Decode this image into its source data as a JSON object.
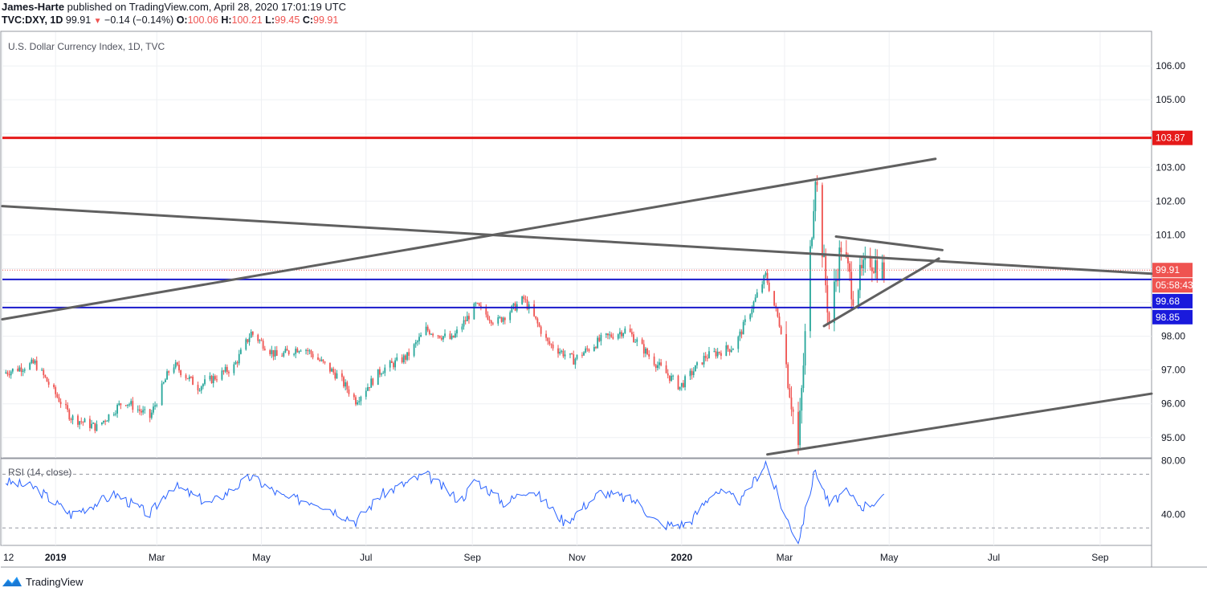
{
  "header": {
    "author": "James-Harte",
    "published_text": "published on TradingView.com, April 28, 2020 17:01:19 UTC",
    "symbol_label": "TVC:DXY, 1D",
    "last": "99.91",
    "arrow": "▼",
    "change": "−0.14 (−0.14%)",
    "o_label": "O:",
    "o_value": "100.06",
    "h_label": "H:",
    "h_value": "100.21",
    "l_label": "L:",
    "l_value": "99.45",
    "c_label": "C:",
    "c_value": "99.91"
  },
  "footer": {
    "brand": "TradingView"
  },
  "colors": {
    "up": "#26a69a",
    "down": "#ef5350",
    "resistance": "#e51a1a",
    "support": "#1a1acc",
    "trendline": "#606060",
    "rsi": "#2962ff",
    "price_label": "#ef5350",
    "support_label": "#1a1adc"
  },
  "chart_data": [
    {
      "type": "candlestick",
      "title": "U.S. Dollar Currency Index, 1D, TVC",
      "x_tick_labels": [
        "12",
        "2019",
        "Mar",
        "May",
        "Jul",
        "Sep",
        "Nov",
        "2020",
        "Mar",
        "May",
        "Jul",
        "Sep"
      ],
      "y_ticks": [
        95,
        96,
        97,
        98,
        99,
        100,
        101,
        102,
        103,
        104,
        105,
        106
      ],
      "y_tick_labels": [
        "95.00",
        "96.00",
        "97.00",
        "98.00",
        "",
        "",
        "101.00",
        "102.00",
        "103.00",
        "",
        "105.00",
        "106.00"
      ],
      "ylim": [
        94.4,
        107.0
      ],
      "price_path": [
        [
          "2018-12-01",
          96.9
        ],
        [
          "2018-12-20",
          97.2
        ],
        [
          "2019-01-10",
          95.6
        ],
        [
          "2019-01-25",
          95.3
        ],
        [
          "2019-02-10",
          96.1
        ],
        [
          "2019-02-25",
          95.6
        ],
        [
          "2019-03-10",
          97.2
        ],
        [
          "2019-03-25",
          96.5
        ],
        [
          "2019-04-15",
          97.1
        ],
        [
          "2019-04-25",
          98.1
        ],
        [
          "2019-05-10",
          97.4
        ],
        [
          "2019-05-25",
          97.7
        ],
        [
          "2019-06-15",
          96.8
        ],
        [
          "2019-06-25",
          96.1
        ],
        [
          "2019-07-10",
          97.0
        ],
        [
          "2019-07-25",
          97.4
        ],
        [
          "2019-08-05",
          98.2
        ],
        [
          "2019-08-20",
          97.9
        ],
        [
          "2019-09-03",
          98.9
        ],
        [
          "2019-09-15",
          98.4
        ],
        [
          "2019-10-01",
          99.1
        ],
        [
          "2019-10-15",
          97.8
        ],
        [
          "2019-10-30",
          97.3
        ],
        [
          "2019-11-15",
          97.9
        ],
        [
          "2019-11-30",
          98.2
        ],
        [
          "2019-12-15",
          97.3
        ],
        [
          "2019-12-31",
          96.5
        ],
        [
          "2020-01-15",
          97.4
        ],
        [
          "2020-02-01",
          97.7
        ],
        [
          "2020-02-19",
          99.8
        ],
        [
          "2020-02-28",
          98.2
        ],
        [
          "2020-03-09",
          94.7
        ],
        [
          "2020-03-19",
          102.9
        ],
        [
          "2020-03-27",
          98.4
        ],
        [
          "2020-04-03",
          100.7
        ],
        [
          "2020-04-10",
          99.3
        ],
        [
          "2020-04-20",
          100.3
        ],
        [
          "2020-04-28",
          99.91
        ]
      ],
      "horizontal_levels": [
        {
          "value": 103.87,
          "label": "103.87",
          "color": "resistance"
        },
        {
          "value": 99.68,
          "label": "99.68",
          "color": "support"
        },
        {
          "value": 98.85,
          "label": "98.85",
          "color": "support"
        }
      ],
      "last_price": {
        "value": 99.91,
        "label": "99.91",
        "countdown": "05:58:43"
      },
      "trendlines": [
        {
          "from": [
            "2018-12-01",
            101.85
          ],
          "to": [
            "2020-10-01",
            99.85
          ]
        },
        {
          "from": [
            "2018-12-01",
            98.5
          ],
          "to": [
            "2020-05-28",
            103.25
          ]
        },
        {
          "from": [
            "2020-02-20",
            94.5
          ],
          "to": [
            "2020-10-01",
            96.3
          ]
        },
        {
          "from": [
            "2020-03-31",
            100.95
          ],
          "to": [
            "2020-06-01",
            100.55
          ]
        },
        {
          "from": [
            "2020-03-24",
            98.3
          ],
          "to": [
            "2020-05-30",
            100.3
          ]
        }
      ]
    },
    {
      "type": "line",
      "title": "RSI (14, close)",
      "y_ticks": [
        40,
        80
      ],
      "y_tick_labels": [
        "40.00",
        "80.00"
      ],
      "bands": [
        30,
        70
      ],
      "ylim": [
        17,
        81
      ],
      "rsi_path": [
        [
          "2018-12-01",
          65
        ],
        [
          "2018-12-20",
          60
        ],
        [
          "2019-01-10",
          40
        ],
        [
          "2019-02-05",
          55
        ],
        [
          "2019-02-25",
          40
        ],
        [
          "2019-03-10",
          62
        ],
        [
          "2019-04-01",
          48
        ],
        [
          "2019-04-25",
          68
        ],
        [
          "2019-05-15",
          52
        ],
        [
          "2019-06-01",
          50
        ],
        [
          "2019-06-25",
          35
        ],
        [
          "2019-07-10",
          55
        ],
        [
          "2019-08-05",
          70
        ],
        [
          "2019-08-25",
          50
        ],
        [
          "2019-09-03",
          66
        ],
        [
          "2019-09-20",
          48
        ],
        [
          "2019-10-05",
          60
        ],
        [
          "2019-10-25",
          34
        ],
        [
          "2019-11-15",
          57
        ],
        [
          "2019-12-05",
          50
        ],
        [
          "2019-12-20",
          32
        ],
        [
          "2020-01-05",
          33
        ],
        [
          "2020-01-20",
          58
        ],
        [
          "2020-02-05",
          50
        ],
        [
          "2020-02-19",
          79
        ],
        [
          "2020-03-01",
          40
        ],
        [
          "2020-03-09",
          20
        ],
        [
          "2020-03-19",
          74
        ],
        [
          "2020-03-27",
          47
        ],
        [
          "2020-04-05",
          57
        ],
        [
          "2020-04-15",
          46
        ],
        [
          "2020-04-28",
          52
        ]
      ]
    }
  ]
}
